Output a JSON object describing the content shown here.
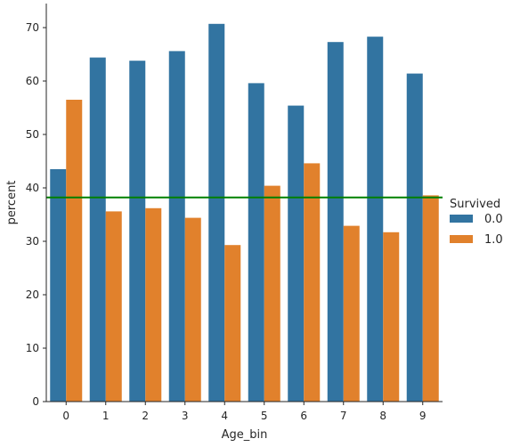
{
  "colors": {
    "survived_0": "#3274a1",
    "survived_1": "#e1812c",
    "reference_line": "#008000",
    "axis": "#262626"
  },
  "chart_data": {
    "type": "bar",
    "xlabel": "Age_bin",
    "ylabel": "percent",
    "categories": [
      "0",
      "1",
      "2",
      "3",
      "4",
      "5",
      "6",
      "7",
      "8",
      "9"
    ],
    "ylim": [
      0,
      74.5
    ],
    "yticks": [
      0,
      10,
      20,
      30,
      40,
      50,
      60,
      70
    ],
    "grid": false,
    "legend": {
      "title": "Survived",
      "placement": "right"
    },
    "series": [
      {
        "name": "0.0",
        "values": [
          43.5,
          64.4,
          63.8,
          65.6,
          70.7,
          59.6,
          55.4,
          67.3,
          68.3,
          61.4
        ]
      },
      {
        "name": "1.0",
        "values": [
          56.5,
          35.6,
          36.2,
          34.4,
          29.3,
          40.4,
          44.6,
          32.9,
          31.7,
          38.6
        ]
      }
    ],
    "reference_line": {
      "y": 38.2
    }
  }
}
